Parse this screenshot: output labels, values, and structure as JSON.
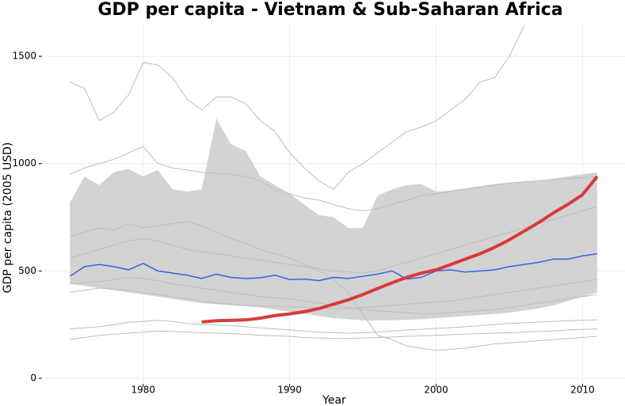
{
  "chart_data": {
    "type": "line",
    "title": "GDP per capita - Vietnam & Sub-Saharan Africa",
    "xlabel": "Year",
    "ylabel": "GDP per capita (2005 USD)",
    "xlim": [
      1973.2,
      2012.9
    ],
    "ylim": [
      -26,
      1659
    ],
    "xticks": [
      1980,
      1990,
      2000,
      2010
    ],
    "yticks": [
      0,
      500,
      1000,
      1500
    ],
    "grid": true,
    "x": [
      1975,
      1976,
      1977,
      1978,
      1979,
      1980,
      1981,
      1982,
      1983,
      1984,
      1985,
      1986,
      1987,
      1988,
      1989,
      1990,
      1991,
      1992,
      1993,
      1994,
      1995,
      1996,
      1997,
      1998,
      1999,
      2000,
      2001,
      2002,
      2003,
      2004,
      2005,
      2006,
      2007,
      2008,
      2009,
      2010,
      2011
    ],
    "band": {
      "color": "#d3d3d3",
      "upper": [
        820,
        940,
        900,
        960,
        975,
        940,
        970,
        880,
        870,
        880,
        1210,
        1090,
        1060,
        940,
        900,
        860,
        810,
        760,
        750,
        700,
        700,
        850,
        880,
        900,
        905,
        870,
        875,
        885,
        895,
        905,
        910,
        915,
        920,
        930,
        940,
        950,
        960
      ],
      "lower": [
        440,
        430,
        420,
        410,
        400,
        390,
        380,
        370,
        360,
        350,
        345,
        340,
        335,
        330,
        320,
        310,
        300,
        290,
        280,
        275,
        270,
        270,
        270,
        272,
        275,
        280,
        285,
        290,
        295,
        300,
        305,
        315,
        325,
        340,
        360,
        380,
        400
      ]
    },
    "series": [
      {
        "color": "#bdbdbd",
        "width": 1,
        "values": [
          180,
          190,
          200,
          205,
          210,
          215,
          220,
          218,
          215,
          212,
          210,
          208,
          205,
          200,
          198,
          195,
          190,
          188,
          185,
          185,
          188,
          190,
          192,
          195,
          198,
          200,
          203,
          205,
          208,
          210,
          212,
          215,
          218,
          220,
          225,
          228,
          230
        ]
      },
      {
        "color": "#bdbdbd",
        "width": 1,
        "values": [
          230,
          235,
          240,
          250,
          260,
          265,
          270,
          265,
          255,
          250,
          248,
          245,
          240,
          235,
          230,
          225,
          220,
          215,
          212,
          210,
          212,
          215,
          220,
          225,
          228,
          232,
          236,
          240,
          245,
          250,
          255,
          258,
          262,
          265,
          268,
          270,
          272
        ]
      },
      {
        "color": "#bdbdbd",
        "width": 1,
        "values": [
          1380,
          1350,
          1200,
          1240,
          1320,
          1470,
          1460,
          1400,
          1300,
          1250,
          1310,
          1310,
          1280,
          1200,
          1150,
          1050,
          980,
          920,
          880,
          960,
          1000,
          1050,
          1100,
          1150,
          1170,
          1200,
          1250,
          1300,
          1380,
          1400,
          1500,
          1640,
          null,
          null,
          null,
          null,
          null
        ]
      },
      {
        "color": "#bdbdbd",
        "width": 1,
        "values": [
          660,
          680,
          700,
          690,
          720,
          700,
          710,
          720,
          730,
          710,
          680,
          650,
          630,
          600,
          580,
          560,
          530,
          500,
          460,
          400,
          300,
          200,
          180,
          150,
          140,
          130,
          135,
          140,
          150,
          160,
          165,
          170,
          175,
          180,
          185,
          190,
          195
        ]
      },
      {
        "color": "#bdbdbd",
        "width": 1,
        "values": [
          950,
          980,
          1000,
          1020,
          1050,
          1080,
          1000,
          980,
          970,
          960,
          955,
          950,
          940,
          920,
          880,
          860,
          840,
          830,
          810,
          790,
          780,
          790,
          810,
          830,
          850,
          860,
          870,
          880,
          890,
          900,
          910,
          915,
          920,
          925,
          930,
          935,
          940
        ]
      },
      {
        "color": "#bdbdbd",
        "width": 1,
        "values": [
          400,
          410,
          420,
          415,
          410,
          400,
          390,
          380,
          370,
          360,
          350,
          345,
          340,
          338,
          335,
          333,
          330,
          328,
          326,
          325,
          330,
          335,
          340,
          345,
          350,
          355,
          360,
          370,
          380,
          390,
          400,
          410,
          420,
          430,
          440,
          450,
          460
        ]
      },
      {
        "color": "#bdbdbd",
        "width": 1,
        "values": [
          560,
          580,
          600,
          620,
          640,
          650,
          640,
          620,
          600,
          590,
          580,
          570,
          560,
          550,
          540,
          530,
          520,
          510,
          500,
          495,
          490,
          500,
          520,
          540,
          560,
          580,
          600,
          620,
          640,
          660,
          680,
          700,
          720,
          740,
          760,
          780,
          800
        ]
      },
      {
        "color": "#bdbdbd",
        "width": 1,
        "values": [
          440,
          445,
          450,
          460,
          470,
          465,
          455,
          440,
          430,
          420,
          410,
          400,
          390,
          380,
          375,
          370,
          360,
          350,
          340,
          330,
          320,
          315,
          310,
          305,
          300,
          300,
          305,
          310,
          315,
          320,
          330,
          340,
          350,
          360,
          370,
          380,
          390
        ]
      },
      {
        "color": "#3366dd",
        "width": 1.5,
        "values": [
          475,
          520,
          530,
          520,
          505,
          535,
          500,
          490,
          480,
          465,
          485,
          470,
          465,
          468,
          480,
          460,
          462,
          455,
          470,
          465,
          475,
          485,
          500,
          462,
          470,
          500,
          505,
          495,
          500,
          505,
          520,
          530,
          540,
          555,
          555,
          570,
          580
        ]
      },
      {
        "color": "#d93a3a",
        "width": 4,
        "values": [
          null,
          null,
          null,
          null,
          null,
          null,
          null,
          null,
          null,
          262,
          268,
          270,
          272,
          280,
          292,
          300,
          310,
          325,
          345,
          365,
          390,
          418,
          445,
          470,
          490,
          505,
          530,
          555,
          580,
          610,
          645,
          685,
          725,
          770,
          810,
          855,
          940
        ]
      }
    ]
  }
}
